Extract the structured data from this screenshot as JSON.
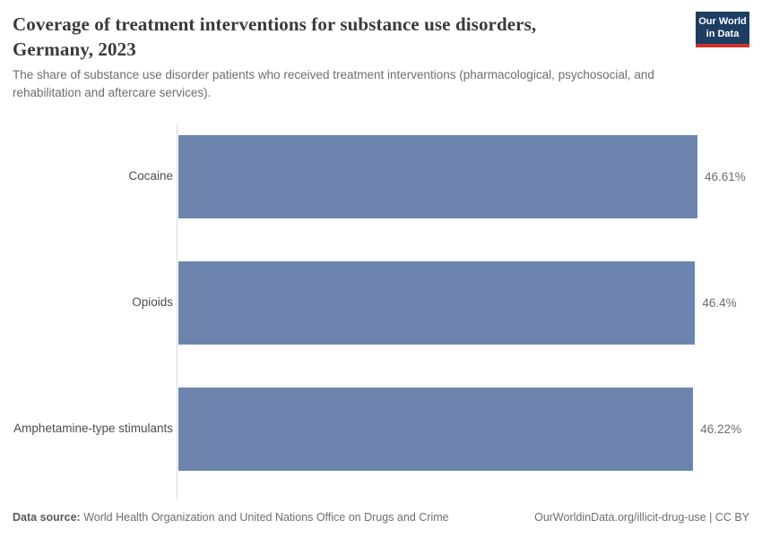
{
  "header": {
    "title_line1": "Coverage of treatment interventions for substance use disorders,",
    "title_line2": "Germany, 2023",
    "subtitle": "The share of substance use disorder patients who received treatment interventions (pharmacological, psychosocial, and rehabilitation and aftercare services).",
    "logo": {
      "line1": "Our World",
      "line2": "in Data",
      "bg_color": "#1d3d63",
      "accent_color": "#cf342e"
    }
  },
  "chart_data": {
    "type": "bar",
    "orientation": "horizontal",
    "title": "Coverage of treatment interventions for substance use disorders, Germany, 2023",
    "entity": "Germany",
    "year": "2023",
    "categories": [
      "Cocaine",
      "Opioids",
      "Amphetamine-type stimulants"
    ],
    "values": [
      46.61,
      46.4,
      46.22
    ],
    "value_labels": [
      "46.61%",
      "46.4%",
      "46.22%"
    ],
    "xlim": [
      0,
      46.61
    ],
    "grid": false,
    "legend": "none",
    "bar_color": "#6d85ae",
    "axis_line_color": "#d9d9d9"
  },
  "footer": {
    "data_source_label": "Data source:",
    "data_source_text": " World Health Organization and United Nations Office on Drugs and Crime",
    "link_text": "OurWorldinData.org/illicit-drug-use | CC BY"
  }
}
